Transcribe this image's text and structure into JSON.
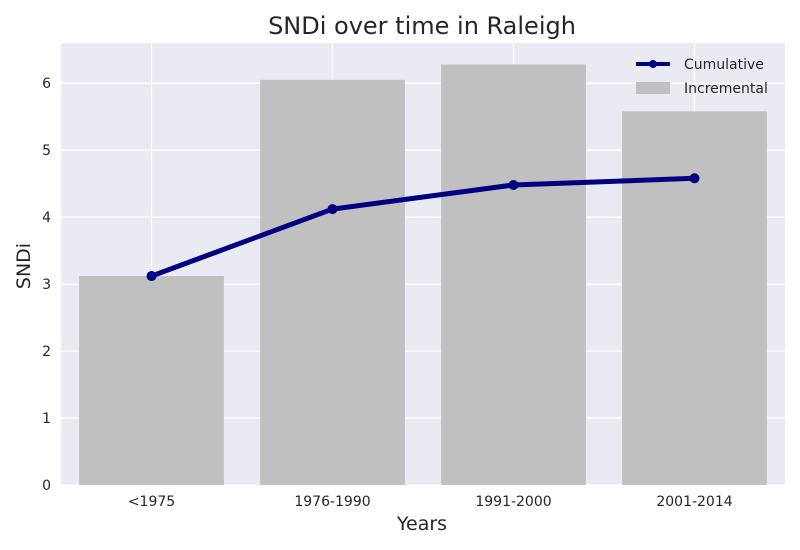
{
  "chart_data": {
    "type": "bar",
    "title": "SNDi over time in Raleigh",
    "xlabel": "Years",
    "ylabel": "SNDi",
    "categories": [
      "<1975",
      "1976-1990",
      "1991-2000",
      "2001-2014"
    ],
    "series": [
      {
        "name": "Incremental",
        "kind": "bar",
        "color": "#c0c0c0",
        "values": [
          3.12,
          6.05,
          6.28,
          5.58
        ]
      },
      {
        "name": "Cumulative",
        "kind": "line",
        "color": "#000080",
        "values": [
          3.12,
          4.12,
          4.48,
          4.58
        ]
      }
    ],
    "ylim": [
      0,
      6.6
    ],
    "yticks": [
      "0",
      "1",
      "2",
      "3",
      "4",
      "5",
      "6"
    ],
    "grid": true,
    "legend_position": "top-right",
    "style": {
      "background": "#eaeaf2",
      "grid_color": "#ffffff"
    }
  }
}
